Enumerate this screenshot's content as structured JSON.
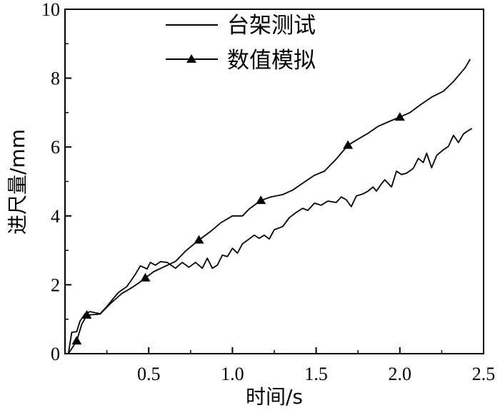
{
  "chart_data": {
    "type": "line",
    "xlabel": "时间/s",
    "ylabel": "进尺量/mm",
    "xlim": [
      0,
      2.5
    ],
    "ylim": [
      0,
      10
    ],
    "xticks": [
      0.5,
      1.0,
      1.5,
      2.0,
      2.5
    ],
    "xtick_labels": [
      "0.5",
      "1.0",
      "1.5",
      "2.0",
      "2.5"
    ],
    "x_minor_ticks": [
      0.25,
      0.75,
      1.25,
      1.75,
      2.25
    ],
    "yticks": [
      0,
      2,
      4,
      6,
      8,
      10
    ],
    "ytick_labels": [
      "0",
      "2",
      "4",
      "6",
      "8",
      "10"
    ],
    "y_minor_ticks": [
      1,
      3,
      5,
      7,
      9
    ],
    "grid": false,
    "legend": "top-left",
    "series": [
      {
        "name": "台架测试",
        "line_color": "#000000",
        "marker": "none",
        "x": [
          0.02,
          0.04,
          0.07,
          0.09,
          0.12,
          0.15,
          0.21,
          0.25,
          0.29,
          0.32,
          0.37,
          0.42,
          0.45,
          0.49,
          0.51,
          0.54,
          0.57,
          0.61,
          0.66,
          0.7,
          0.74,
          0.78,
          0.82,
          0.85,
          0.88,
          0.91,
          0.94,
          0.97,
          1.0,
          1.03,
          1.06,
          1.1,
          1.13,
          1.16,
          1.19,
          1.22,
          1.25,
          1.3,
          1.34,
          1.38,
          1.42,
          1.45,
          1.49,
          1.53,
          1.57,
          1.62,
          1.65,
          1.68,
          1.71,
          1.74,
          1.78,
          1.81,
          1.84,
          1.86,
          1.89,
          1.91,
          1.95,
          1.98,
          2.01,
          2.04,
          2.08,
          2.11,
          2.14,
          2.16,
          2.19,
          2.22,
          2.26,
          2.29,
          2.32,
          2.35,
          2.38,
          2.41,
          2.43
        ],
        "y": [
          0.0,
          0.62,
          0.64,
          0.95,
          1.16,
          1.22,
          1.16,
          1.37,
          1.61,
          1.78,
          1.95,
          2.3,
          2.55,
          2.46,
          2.65,
          2.57,
          2.67,
          2.65,
          2.48,
          2.65,
          2.51,
          2.65,
          2.48,
          2.77,
          2.48,
          2.57,
          2.86,
          2.82,
          3.06,
          2.92,
          3.19,
          3.33,
          3.44,
          3.35,
          3.44,
          3.33,
          3.6,
          3.69,
          3.95,
          4.1,
          4.22,
          4.16,
          4.37,
          4.31,
          4.43,
          4.39,
          4.55,
          4.47,
          4.27,
          4.58,
          4.64,
          4.72,
          4.84,
          4.72,
          4.93,
          5.05,
          4.84,
          5.3,
          5.2,
          5.24,
          5.38,
          5.67,
          5.55,
          5.82,
          5.4,
          5.76,
          5.92,
          6.02,
          6.34,
          6.13,
          6.38,
          6.48,
          6.54
        ]
      },
      {
        "name": "数值模拟",
        "line_color": "#000000",
        "marker": "triangle",
        "x": [
          0.02,
          0.07,
          0.1,
          0.13,
          0.21,
          0.27,
          0.34,
          0.4,
          0.44,
          0.48,
          0.53,
          0.59,
          0.66,
          0.72,
          0.8,
          0.87,
          0.93,
          1.0,
          1.06,
          1.1,
          1.17,
          1.23,
          1.3,
          1.36,
          1.42,
          1.49,
          1.55,
          1.62,
          1.69,
          1.74,
          1.81,
          1.87,
          1.94,
          2.0,
          2.06,
          2.13,
          2.19,
          2.26,
          2.32,
          2.39,
          2.42
        ],
        "y": [
          0.0,
          0.37,
          0.85,
          1.12,
          1.15,
          1.45,
          1.75,
          1.92,
          2.05,
          2.2,
          2.38,
          2.52,
          2.68,
          2.98,
          3.3,
          3.55,
          3.8,
          4.0,
          4.0,
          4.2,
          4.45,
          4.55,
          4.62,
          4.75,
          4.95,
          5.18,
          5.3,
          5.65,
          6.05,
          6.2,
          6.4,
          6.6,
          6.75,
          6.87,
          7.0,
          7.25,
          7.45,
          7.62,
          7.9,
          8.3,
          8.55
        ],
        "marker_points": {
          "x": [
            0.07,
            0.13,
            0.48,
            0.8,
            1.17,
            1.69,
            2.0
          ],
          "y": [
            0.37,
            1.12,
            2.2,
            3.3,
            4.45,
            6.05,
            6.87
          ]
        }
      }
    ]
  }
}
